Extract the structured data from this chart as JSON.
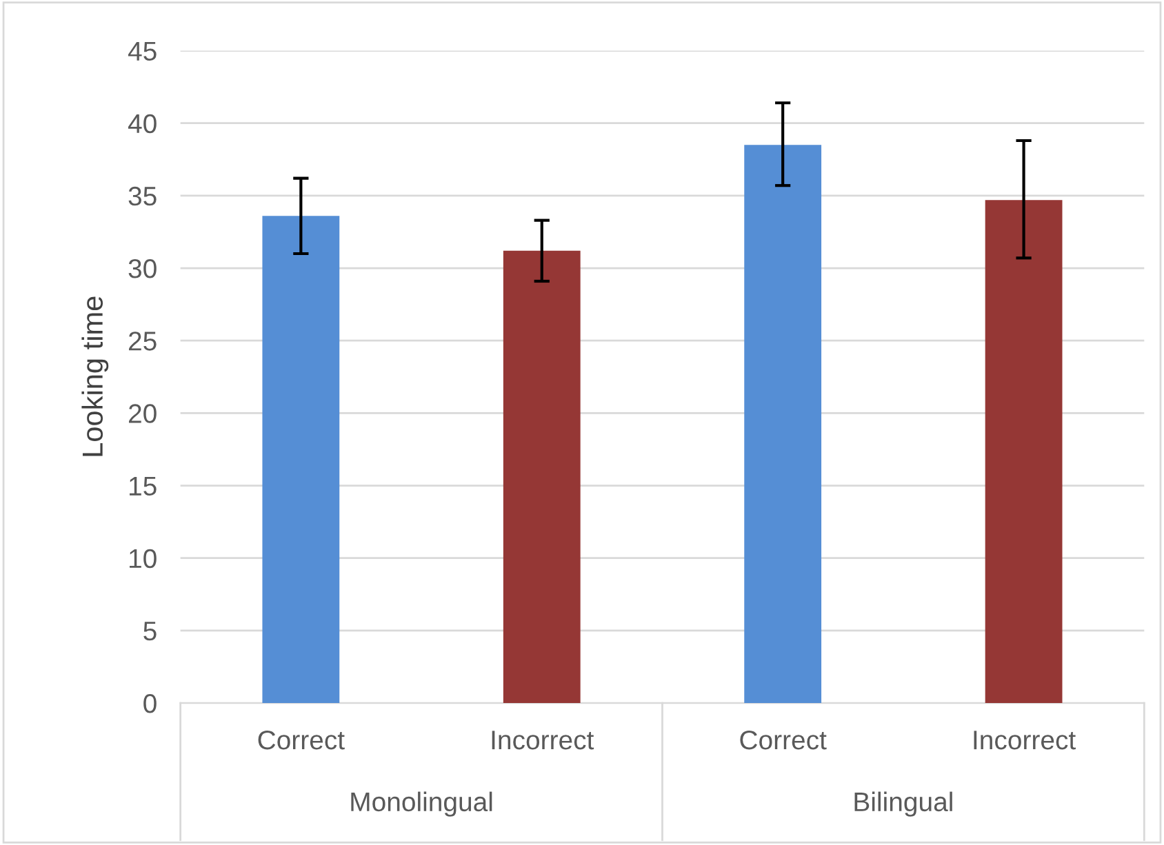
{
  "chart_data": {
    "type": "bar",
    "ylabel": "Looking time",
    "categories": [
      "Correct",
      "Incorrect",
      "Correct",
      "Incorrect"
    ],
    "values": [
      33.6,
      31.2,
      38.5,
      34.7
    ],
    "colors": [
      "#558ed5",
      "#953735",
      "#558ed5",
      "#953735"
    ],
    "errors": [
      [
        31.0,
        36.2
      ],
      [
        29.1,
        33.3
      ],
      [
        35.7,
        41.4
      ],
      [
        30.7,
        38.8
      ]
    ],
    "ylim": [
      0,
      45
    ],
    "yticks": [
      0,
      5,
      10,
      15,
      20,
      25,
      30,
      35,
      40,
      45
    ],
    "grid": "y",
    "annotations": [
      "Monolingual",
      "Bilingual"
    ]
  }
}
